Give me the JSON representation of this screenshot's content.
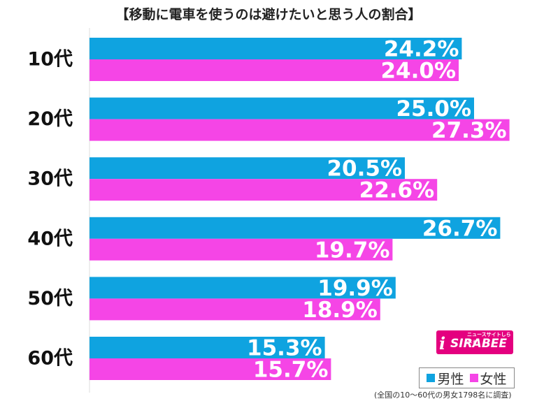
{
  "title": "【移動に電車を使うのは避けたいと思う人の割合】",
  "chart_data": {
    "type": "bar",
    "orientation": "horizontal",
    "categories": [
      "10代",
      "20代",
      "30代",
      "40代",
      "50代",
      "60代"
    ],
    "series": [
      {
        "name": "男性",
        "values": [
          24.2,
          25.0,
          20.5,
          26.7,
          19.9,
          15.3
        ],
        "labels": [
          "24.2%",
          "25.0%",
          "20.5%",
          "26.7%",
          "19.9%",
          "15.3%"
        ],
        "color": "#0fa3e0"
      },
      {
        "name": "女性",
        "values": [
          24.0,
          27.3,
          22.6,
          19.7,
          18.9,
          15.7
        ],
        "labels": [
          "24.0%",
          "27.3%",
          "22.6%",
          "19.7%",
          "18.9%",
          "15.7%"
        ],
        "color": "#f545e6"
      }
    ],
    "xlim": [
      0,
      30
    ],
    "grid": false,
    "legend_position": "bottom-right"
  },
  "logo": {
    "main": "SIRABEE",
    "sub": "ニュースサイトしらべぇ",
    "icon": "i"
  },
  "legend": [
    {
      "label": "男性",
      "color": "#0fa3e0"
    },
    {
      "label": "女性",
      "color": "#f545e6"
    }
  ],
  "footnote": "(全国の10～60代の男女1798名に調査)"
}
